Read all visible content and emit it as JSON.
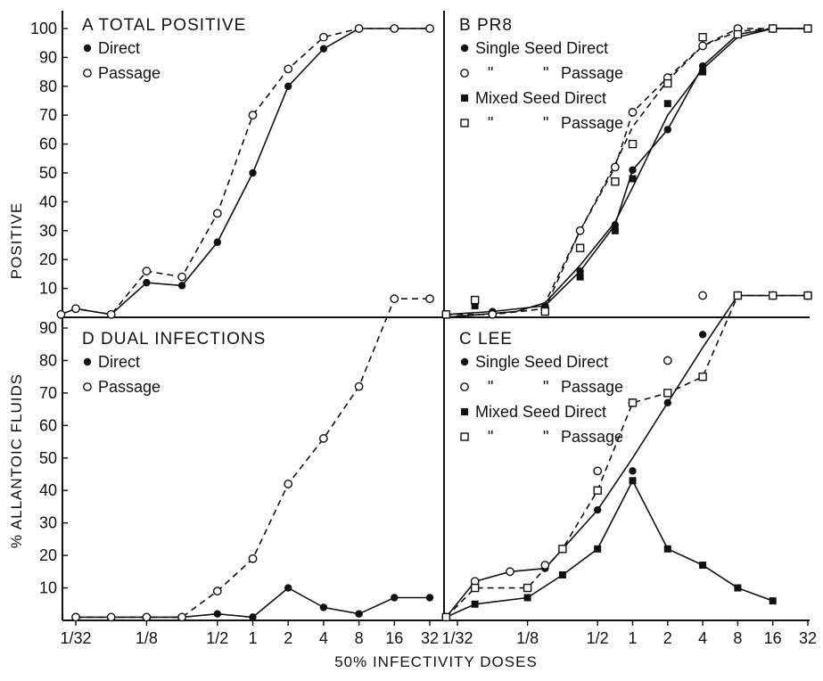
{
  "figure": {
    "ylabel_top": "POSITIVE",
    "ylabel_bottom": "% ALLANTOIC FLUIDS",
    "xlabel": "50% INFECTIVITY DOSES"
  },
  "chart_data": [
    {
      "panel": "A",
      "type": "line",
      "title": "A TOTAL POSITIVE",
      "xscale": "log2",
      "x_tick_labels": [],
      "y_ticks": [
        10,
        20,
        30,
        40,
        50,
        60,
        70,
        80,
        90,
        100
      ],
      "ylim": [
        0,
        105
      ],
      "legend_position": "top-left",
      "series": [
        {
          "name": "Direct",
          "marker": "filled-circle",
          "line": "solid",
          "points": [
            [
              0.0234,
              1
            ],
            [
              0.03125,
              3
            ],
            [
              0.0625,
              1
            ],
            [
              0.125,
              12
            ],
            [
              0.25,
              11
            ],
            [
              0.5,
              26
            ],
            [
              1,
              50
            ],
            [
              2,
              80
            ],
            [
              4,
              93
            ],
            [
              8,
              100
            ],
            [
              16,
              100
            ],
            [
              32,
              100
            ]
          ]
        },
        {
          "name": "Passage",
          "marker": "open-circle",
          "line": "dashed",
          "points": [
            [
              0.0234,
              1
            ],
            [
              0.03125,
              3
            ],
            [
              0.0625,
              1
            ],
            [
              0.125,
              16
            ],
            [
              0.25,
              14
            ],
            [
              0.5,
              36
            ],
            [
              1,
              70
            ],
            [
              2,
              86
            ],
            [
              4,
              97
            ],
            [
              8,
              100
            ],
            [
              16,
              100
            ],
            [
              32,
              100
            ]
          ]
        }
      ]
    },
    {
      "panel": "B",
      "type": "line",
      "title": "B PR8",
      "xscale": "log2",
      "x_tick_labels": [],
      "y_ticks": [],
      "ylim": [
        0,
        105
      ],
      "legend_position": "top-left",
      "legend_ditto": "\"",
      "series": [
        {
          "name": "Single Seed Direct",
          "marker": "filled-circle",
          "line": "solid",
          "points": [
            [
              0.025,
              1
            ],
            [
              0.0625,
              2
            ],
            [
              0.177,
              4
            ],
            [
              0.354,
              16
            ],
            [
              0.707,
              32
            ],
            [
              1,
              51
            ],
            [
              2,
              65
            ],
            [
              4,
              87
            ],
            [
              8,
              98
            ],
            [
              16,
              100
            ],
            [
              32,
              100
            ]
          ]
        },
        {
          "name": "Passage",
          "ditto": true,
          "marker": "open-circle",
          "line": "dashed",
          "points": [
            [
              0.025,
              1
            ],
            [
              0.0625,
              1
            ],
            [
              0.177,
              3
            ],
            [
              0.354,
              30
            ],
            [
              0.707,
              52
            ],
            [
              1,
              71
            ],
            [
              2,
              83
            ],
            [
              4,
              94
            ],
            [
              8,
              100
            ],
            [
              16,
              100
            ]
          ]
        },
        {
          "name": "Mixed Seed Direct",
          "marker": "filled-square",
          "line": "none",
          "points": [
            [
              0.025,
              1
            ],
            [
              0.0442,
              4
            ],
            [
              0.177,
              3
            ],
            [
              0.354,
              14
            ],
            [
              0.707,
              30
            ],
            [
              1,
              48
            ],
            [
              2,
              74
            ],
            [
              4,
              85
            ],
            [
              8,
              98
            ],
            [
              16,
              100
            ],
            [
              32,
              100
            ]
          ]
        },
        {
          "name": "Passage",
          "ditto": true,
          "marker": "open-square",
          "line": "none",
          "points": [
            [
              0.025,
              1
            ],
            [
              0.0442,
              6
            ],
            [
              0.177,
              2
            ],
            [
              0.354,
              24
            ],
            [
              0.707,
              47
            ],
            [
              1,
              60
            ],
            [
              2,
              81
            ],
            [
              4,
              97
            ],
            [
              8,
              98
            ],
            [
              16,
              100
            ],
            [
              32,
              100
            ]
          ]
        }
      ],
      "curves": [
        {
          "style": "solid",
          "points": [
            [
              0.025,
              0
            ],
            [
              0.1,
              2
            ],
            [
              0.177,
              5
            ],
            [
              0.354,
              18
            ],
            [
              0.707,
              33
            ],
            [
              1,
              45
            ],
            [
              2,
              70
            ],
            [
              4,
              86
            ],
            [
              8,
              97
            ],
            [
              16,
              100
            ],
            [
              32,
              100
            ]
          ]
        },
        {
          "style": "dashed",
          "points": [
            [
              0.025,
              0
            ],
            [
              0.1,
              2
            ],
            [
              0.177,
              5
            ],
            [
              0.354,
              30
            ],
            [
              0.707,
              53
            ],
            [
              1,
              66
            ],
            [
              2,
              82
            ],
            [
              4,
              94
            ],
            [
              8,
              99
            ],
            [
              16,
              100
            ],
            [
              32,
              100
            ]
          ]
        }
      ]
    },
    {
      "panel": "D",
      "type": "line",
      "title": "D DUAL INFECTIONS",
      "xscale": "log2",
      "x_tick_labels": [
        "1/32",
        "1/8",
        "1/2",
        "1",
        "2",
        "4",
        "8",
        "16",
        "32"
      ],
      "y_ticks": [
        10,
        20,
        30,
        40,
        50,
        60,
        70,
        80,
        90
      ],
      "ylim": [
        0,
        100
      ],
      "legend_position": "top-left",
      "series": [
        {
          "name": "Direct",
          "marker": "filled-circle",
          "line": "solid",
          "points": [
            [
              0.03125,
              1
            ],
            [
              0.0625,
              1
            ],
            [
              0.125,
              1
            ],
            [
              0.25,
              1
            ],
            [
              0.5,
              2
            ],
            [
              1,
              1
            ],
            [
              2,
              10
            ],
            [
              4,
              4
            ],
            [
              8,
              2
            ],
            [
              16,
              7
            ],
            [
              32,
              7
            ]
          ]
        },
        {
          "name": "Passage",
          "marker": "open-circle",
          "line": "dashed",
          "points": [
            [
              0.03125,
              1
            ],
            [
              0.0625,
              1
            ],
            [
              0.125,
              1
            ],
            [
              0.25,
              1
            ],
            [
              0.5,
              9
            ],
            [
              1,
              19
            ],
            [
              2,
              42
            ],
            [
              4,
              56
            ],
            [
              8,
              72
            ],
            [
              16,
              99
            ],
            [
              32,
              99
            ]
          ]
        }
      ]
    },
    {
      "panel": "C",
      "type": "line",
      "title": "C LEE",
      "xscale": "log2",
      "x_tick_labels": [
        "1/32",
        "1/8",
        "1/2",
        "1",
        "2",
        "4",
        "8",
        "16",
        "32"
      ],
      "y_ticks": [],
      "ylim": [
        0,
        100
      ],
      "legend_position": "top-left",
      "legend_ditto": "\"",
      "series": [
        {
          "name": "Single Seed Direct",
          "marker": "filled-circle",
          "line": "solid",
          "points": [
            [
              0.025,
              1
            ],
            [
              0.0442,
              12
            ],
            [
              0.0884,
              15
            ],
            [
              0.177,
              16
            ],
            [
              0.5,
              34
            ],
            [
              1,
              46
            ],
            [
              2,
              67
            ],
            [
              4,
              88
            ],
            [
              8,
              100
            ],
            [
              16,
              100
            ],
            [
              32,
              100
            ]
          ]
        },
        {
          "name": "Passage",
          "ditto": true,
          "marker": "open-circle",
          "line": "dashed",
          "points": [
            [
              0.025,
              1
            ],
            [
              0.0442,
              12
            ],
            [
              0.0884,
              15
            ],
            [
              0.177,
              17
            ],
            [
              0.5,
              46
            ],
            [
              1,
              67
            ],
            [
              2,
              80
            ],
            [
              4,
              100
            ],
            [
              8,
              100
            ],
            [
              16,
              100
            ],
            [
              32,
              100
            ]
          ]
        },
        {
          "name": "Mixed Seed Direct",
          "marker": "filled-square",
          "line": "solid",
          "points": [
            [
              0.025,
              1
            ],
            [
              0.0442,
              5
            ],
            [
              0.125,
              7
            ],
            [
              0.25,
              14
            ],
            [
              0.5,
              22
            ],
            [
              1,
              43
            ],
            [
              2,
              22
            ],
            [
              4,
              17
            ],
            [
              8,
              10
            ],
            [
              16,
              6
            ]
          ]
        },
        {
          "name": "Passage",
          "ditto": true,
          "marker": "open-square",
          "line": "dashed",
          "points": [
            [
              0.025,
              1
            ],
            [
              0.0442,
              10
            ],
            [
              0.125,
              10
            ],
            [
              0.25,
              22
            ],
            [
              0.5,
              40
            ],
            [
              1,
              67
            ],
            [
              2,
              70
            ],
            [
              4,
              75
            ],
            [
              8,
              100
            ],
            [
              16,
              100
            ],
            [
              32,
              100
            ]
          ]
        }
      ],
      "curves": [
        {
          "style": "dashed",
          "points": [
            [
              0.025,
              1
            ],
            [
              0.0442,
              10
            ],
            [
              0.125,
              10
            ],
            [
              0.25,
              22
            ],
            [
              0.5,
              40
            ],
            [
              1,
              67
            ],
            [
              2,
              70
            ],
            [
              4,
              75
            ],
            [
              8,
              100
            ],
            [
              16,
              100
            ],
            [
              32,
              100
            ]
          ]
        },
        {
          "style": "solid",
          "points": [
            [
              0.025,
              1
            ],
            [
              0.0442,
              12
            ],
            [
              0.0884,
              15
            ],
            [
              0.177,
              16
            ],
            [
              0.5,
              34
            ],
            [
              1,
              50
            ],
            [
              2,
              67
            ],
            [
              4,
              84
            ],
            [
              8,
              100
            ],
            [
              16,
              100
            ],
            [
              32,
              100
            ]
          ]
        }
      ]
    }
  ]
}
